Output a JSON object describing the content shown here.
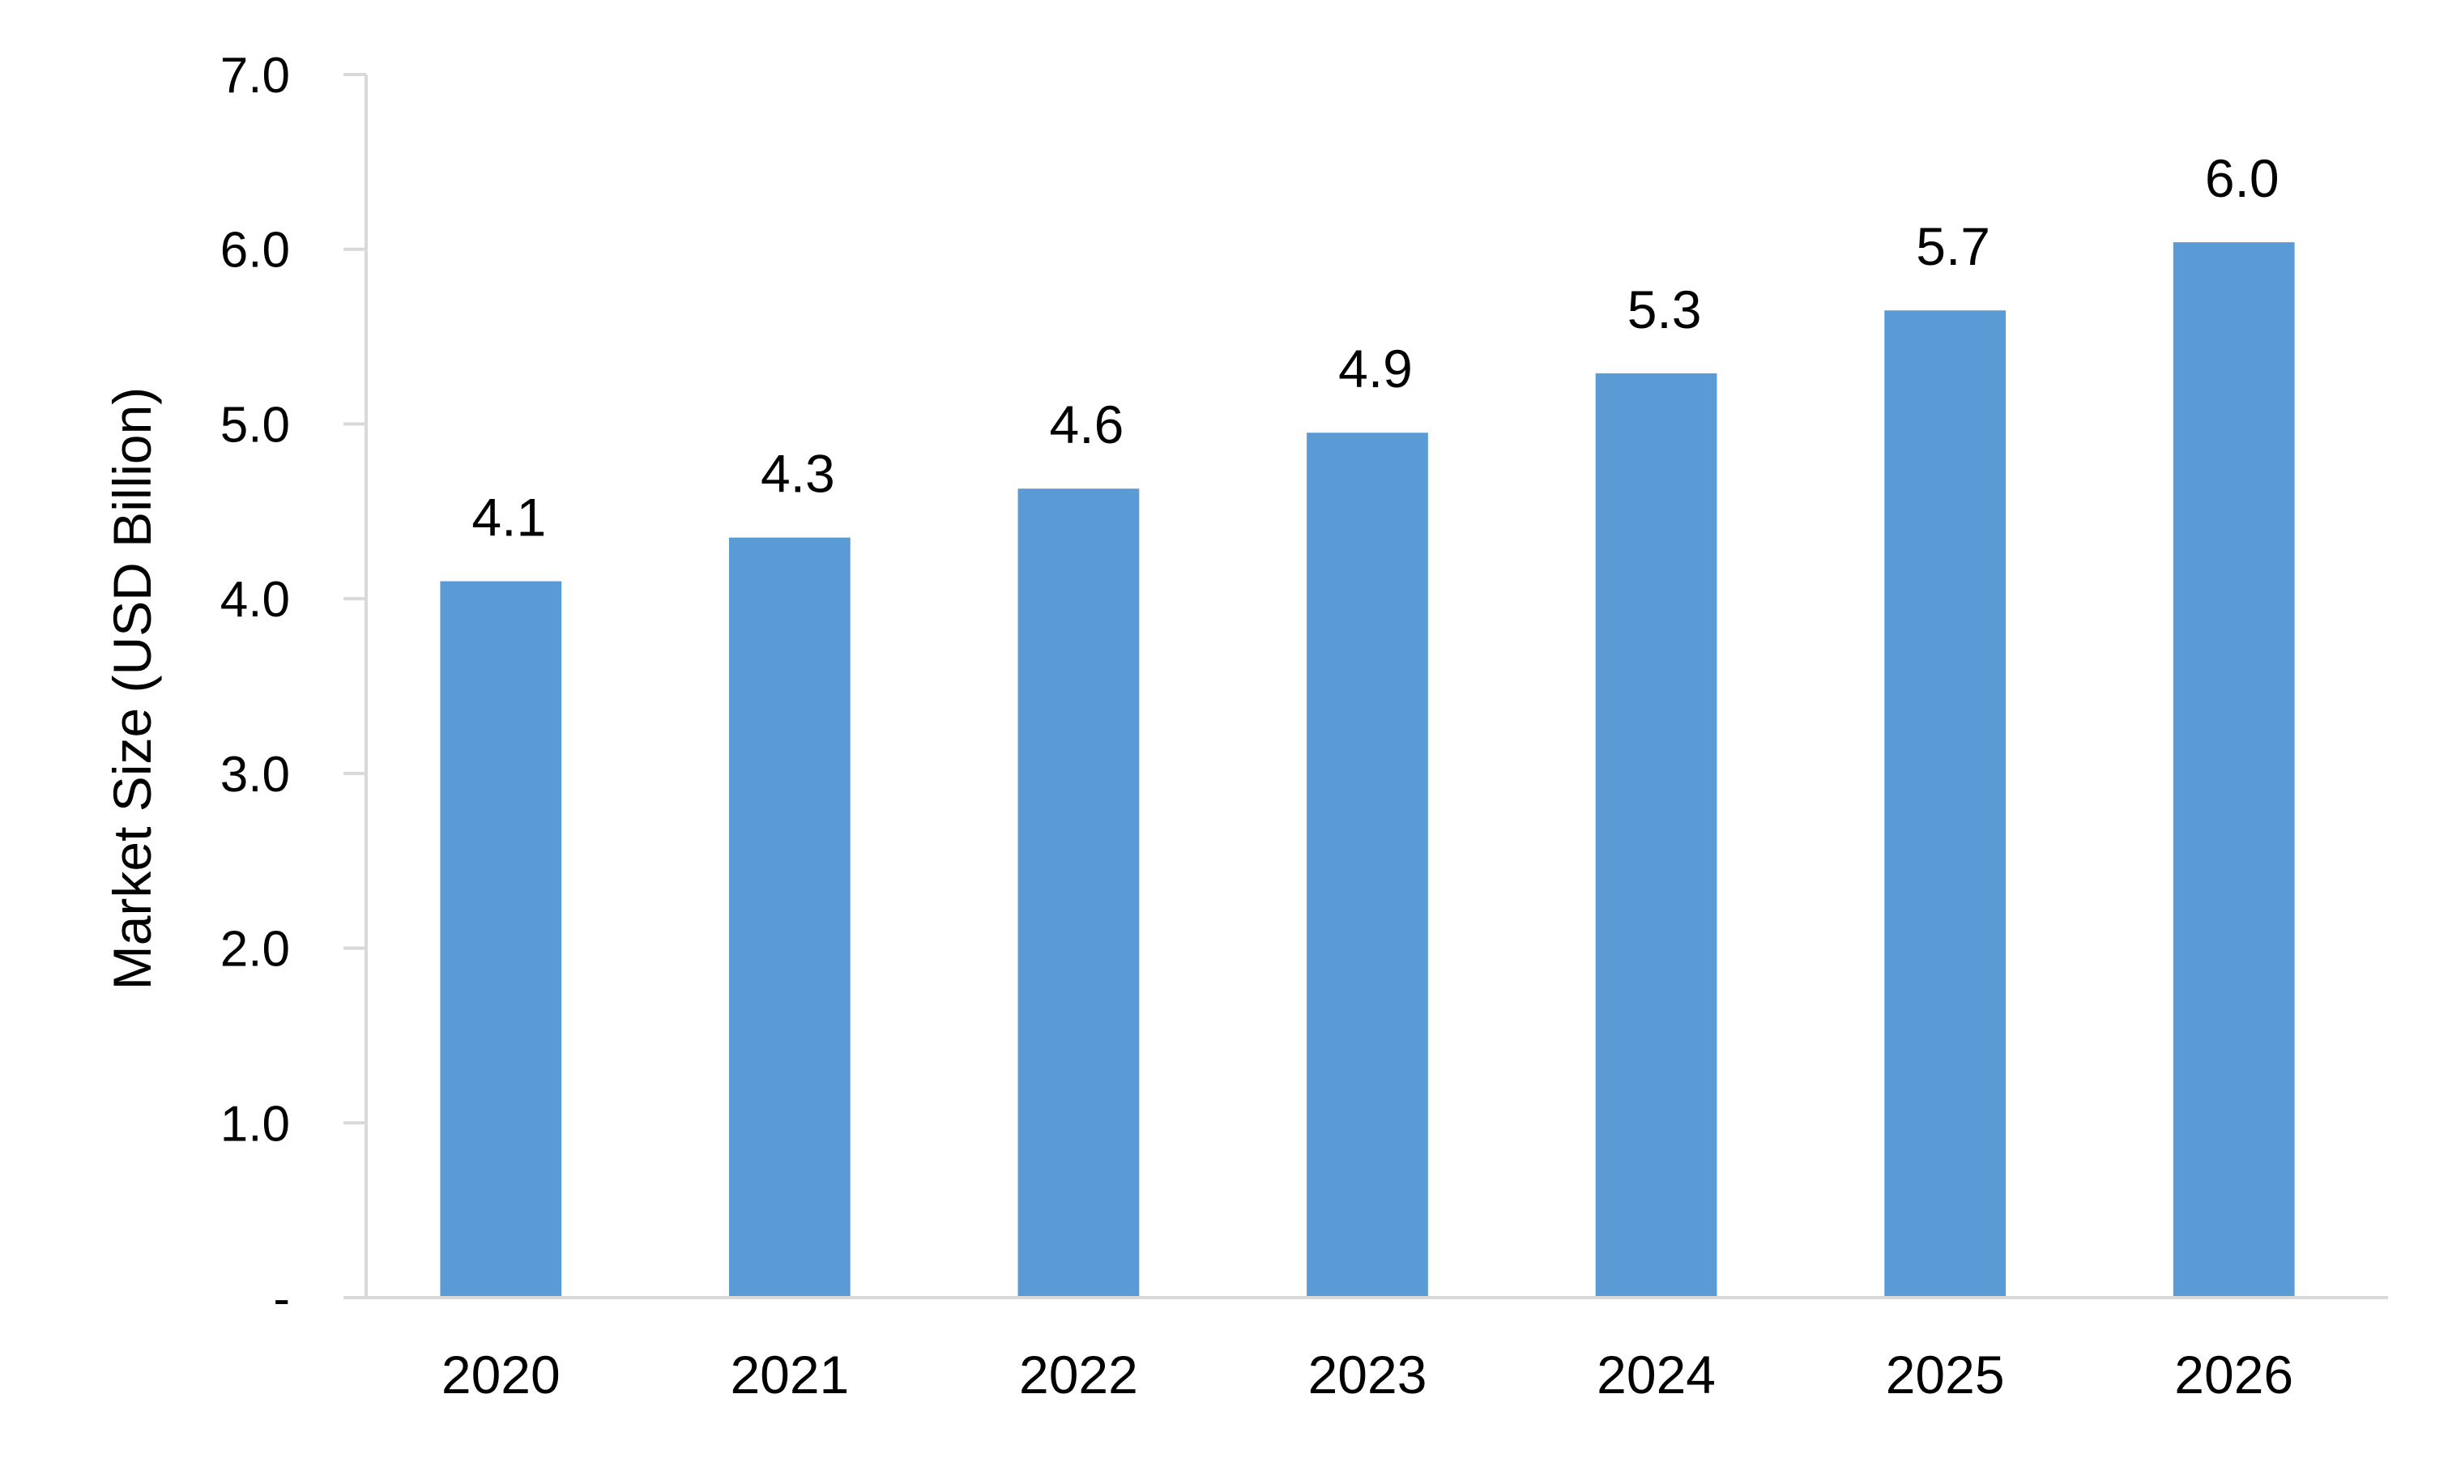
{
  "chart_data": {
    "type": "bar",
    "categories": [
      "2020",
      "2021",
      "2022",
      "2023",
      "2024",
      "2025",
      "2026"
    ],
    "values": [
      4.1,
      4.35,
      4.63,
      4.95,
      5.29,
      5.65,
      6.04
    ],
    "data_labels": [
      "4.1",
      "4.3",
      "4.6",
      "4.9",
      "5.3",
      "5.7",
      "6.0"
    ],
    "ylabel": "Market Size (USD Billion)",
    "xlabel": "",
    "title": "",
    "ylim": [
      0,
      7
    ],
    "yticks": [
      0,
      1,
      2,
      3,
      4,
      5,
      6,
      7
    ],
    "ytick_labels": [
      "-",
      "1.0",
      "2.0",
      "3.0",
      "4.0",
      "5.0",
      "6.0",
      "7.0"
    ],
    "grid": false,
    "legend": "none",
    "colors": {
      "bar": "#5B9BD5",
      "axis": "#D9D9D9",
      "text": "#000000"
    }
  }
}
